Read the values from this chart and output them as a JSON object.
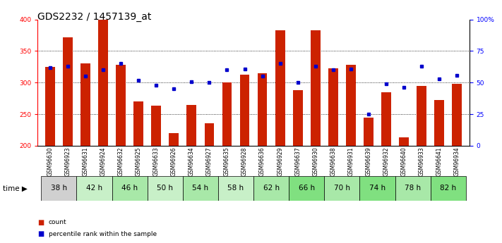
{
  "title": "GDS2232 / 1457139_at",
  "samples": [
    "GSM96630",
    "GSM96923",
    "GSM96631",
    "GSM96924",
    "GSM96632",
    "GSM96925",
    "GSM96633",
    "GSM96926",
    "GSM96634",
    "GSM96927",
    "GSM96635",
    "GSM96928",
    "GSM96636",
    "GSM96929",
    "GSM96637",
    "GSM96930",
    "GSM96638",
    "GSM96931",
    "GSM96639",
    "GSM96932",
    "GSM96640",
    "GSM96933",
    "GSM96641",
    "GSM96934"
  ],
  "count_values": [
    325,
    372,
    330,
    399,
    328,
    270,
    263,
    220,
    265,
    236,
    300,
    313,
    315,
    383,
    288,
    383,
    323,
    328,
    245,
    285,
    213,
    295,
    272,
    298
  ],
  "percentile_values": [
    62,
    63,
    55,
    60,
    65,
    52,
    48,
    45,
    51,
    50,
    60,
    61,
    55,
    65,
    50,
    63,
    60,
    61,
    25,
    49,
    46,
    63,
    53,
    56
  ],
  "time_groups": [
    {
      "label": "38 h",
      "indices": [
        0,
        1
      ],
      "bg": "#d0d0d0"
    },
    {
      "label": "42 h",
      "indices": [
        2,
        3
      ],
      "bg": "#c8f0c8"
    },
    {
      "label": "46 h",
      "indices": [
        4,
        5
      ],
      "bg": "#a8e8a8"
    },
    {
      "label": "50 h",
      "indices": [
        6,
        7
      ],
      "bg": "#c8f0c8"
    },
    {
      "label": "54 h",
      "indices": [
        8,
        9
      ],
      "bg": "#a8e8a8"
    },
    {
      "label": "58 h",
      "indices": [
        10,
        11
      ],
      "bg": "#c8f0c8"
    },
    {
      "label": "62 h",
      "indices": [
        12,
        13
      ],
      "bg": "#a8e8a8"
    },
    {
      "label": "66 h",
      "indices": [
        14,
        15
      ],
      "bg": "#80e080"
    },
    {
      "label": "70 h",
      "indices": [
        16,
        17
      ],
      "bg": "#a8e8a8"
    },
    {
      "label": "74 h",
      "indices": [
        18,
        19
      ],
      "bg": "#80e080"
    },
    {
      "label": "78 h",
      "indices": [
        20,
        21
      ],
      "bg": "#a8e8a8"
    },
    {
      "label": "82 h",
      "indices": [
        22,
        23
      ],
      "bg": "#80e080"
    }
  ],
  "ymin": 200,
  "ymax": 400,
  "yticks_left": [
    200,
    250,
    300,
    350,
    400
  ],
  "yticks_right": [
    0,
    25,
    50,
    75,
    100
  ],
  "bar_color": "#cc2200",
  "dot_color": "#0000cc",
  "bar_width": 0.55,
  "background_color": "#ffffff",
  "plot_bg_color": "#ffffff",
  "legend_count_label": "count",
  "legend_percentile_label": "percentile rank within the sample",
  "title_fontsize": 10,
  "tick_fontsize": 6.5
}
